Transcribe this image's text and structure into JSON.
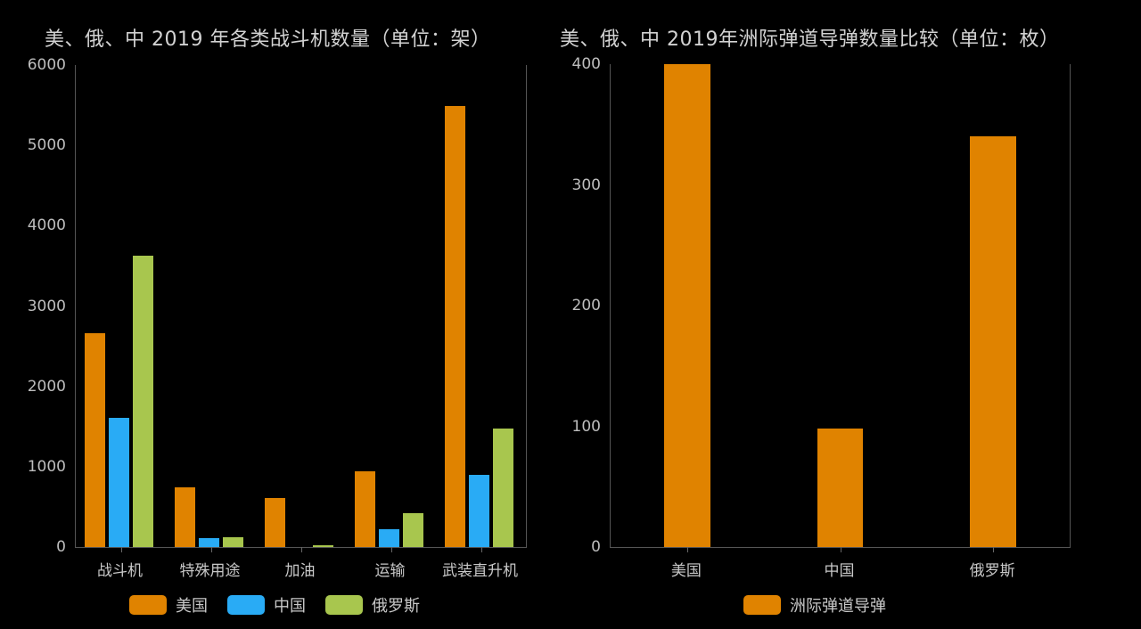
{
  "colors": {
    "usa": "#e08300",
    "china": "#29abf5",
    "russia": "#a8c64e",
    "icbm": "#e08300",
    "background": "#000000",
    "axis": "#555555"
  },
  "left_chart": {
    "title": "美、俄、中 2019 年各类战斗机数量（单位：架）",
    "y_ticks": [
      "0",
      "1000",
      "2000",
      "3000",
      "4000",
      "5000",
      "6000"
    ],
    "categories": [
      "战斗机",
      "特殊用途",
      "加油",
      "运输",
      "武装直升机"
    ],
    "legend": [
      {
        "label": "美国",
        "color": "#e08300"
      },
      {
        "label": "中国",
        "color": "#29abf5"
      },
      {
        "label": "俄罗斯",
        "color": "#a8c64e"
      }
    ]
  },
  "right_chart": {
    "title": "美、俄、中 2019年洲际弹道导弹数量比较（单位：枚）",
    "y_ticks": [
      "0",
      "100",
      "200",
      "300",
      "400"
    ],
    "categories": [
      "美国",
      "中国",
      "俄罗斯"
    ],
    "legend": [
      {
        "label": "洲际弹道导弹",
        "color": "#e08300"
      }
    ]
  },
  "chart_data": [
    {
      "type": "bar",
      "title": "美、俄、中 2019 年各类战斗机数量（单位：架）",
      "xlabel": "",
      "ylabel": "",
      "ylim": [
        0,
        6000
      ],
      "categories": [
        "战斗机",
        "特殊用途",
        "加油",
        "运输",
        "武装直升机"
      ],
      "series": [
        {
          "name": "美国",
          "color": "#e08300",
          "values": [
            2660,
            740,
            610,
            940,
            5490
          ]
        },
        {
          "name": "中国",
          "color": "#29abf5",
          "values": [
            1610,
            110,
            0,
            220,
            900
          ]
        },
        {
          "name": "俄罗斯",
          "color": "#a8c64e",
          "values": [
            3625,
            120,
            20,
            420,
            1475
          ]
        }
      ],
      "legend_position": "bottom",
      "grid": false
    },
    {
      "type": "bar",
      "title": "美、俄、中 2019年洲际弹道导弹数量比较（单位：枚）",
      "xlabel": "",
      "ylabel": "",
      "ylim": [
        0,
        400
      ],
      "categories": [
        "美国",
        "中国",
        "俄罗斯"
      ],
      "series": [
        {
          "name": "洲际弹道导弹",
          "color": "#e08300",
          "values": [
            400,
            98,
            340
          ]
        }
      ],
      "legend_position": "bottom",
      "grid": false
    }
  ]
}
